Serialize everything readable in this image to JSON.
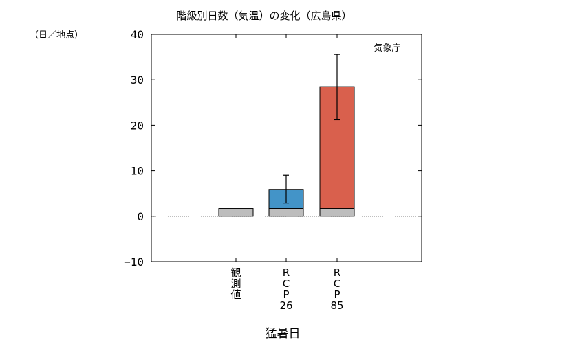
{
  "chart_data": {
    "type": "bar",
    "title": "階級別日数（気温）の変化（広島県）",
    "ylabel": "（日／地点）",
    "xlabel": "猛暑日",
    "source": "気象庁",
    "ylim": [
      -10,
      40
    ],
    "yticks": [
      -10,
      0,
      10,
      20,
      30,
      40
    ],
    "grid": false,
    "zero_line": "dotted",
    "categories": [
      [
        "観",
        "測",
        "値"
      ],
      [
        "R",
        "C",
        "P",
        "26"
      ],
      [
        "R",
        "C",
        "P",
        "85"
      ]
    ],
    "series": [
      {
        "name": "",
        "values": [
          1.7,
          1.7,
          1.7
        ],
        "color": "#bdbdbd"
      },
      {
        "name": "",
        "values": [
          0,
          4.2,
          26.8
        ],
        "colors": [
          "#bdbdbd",
          "#4394c8",
          "#d9604d"
        ]
      }
    ],
    "totals": [
      1.7,
      5.9,
      28.5
    ],
    "error_bars": [
      null,
      {
        "low": 2.9,
        "high": 9.0
      },
      {
        "low": 21.2,
        "high": 35.6
      }
    ]
  }
}
